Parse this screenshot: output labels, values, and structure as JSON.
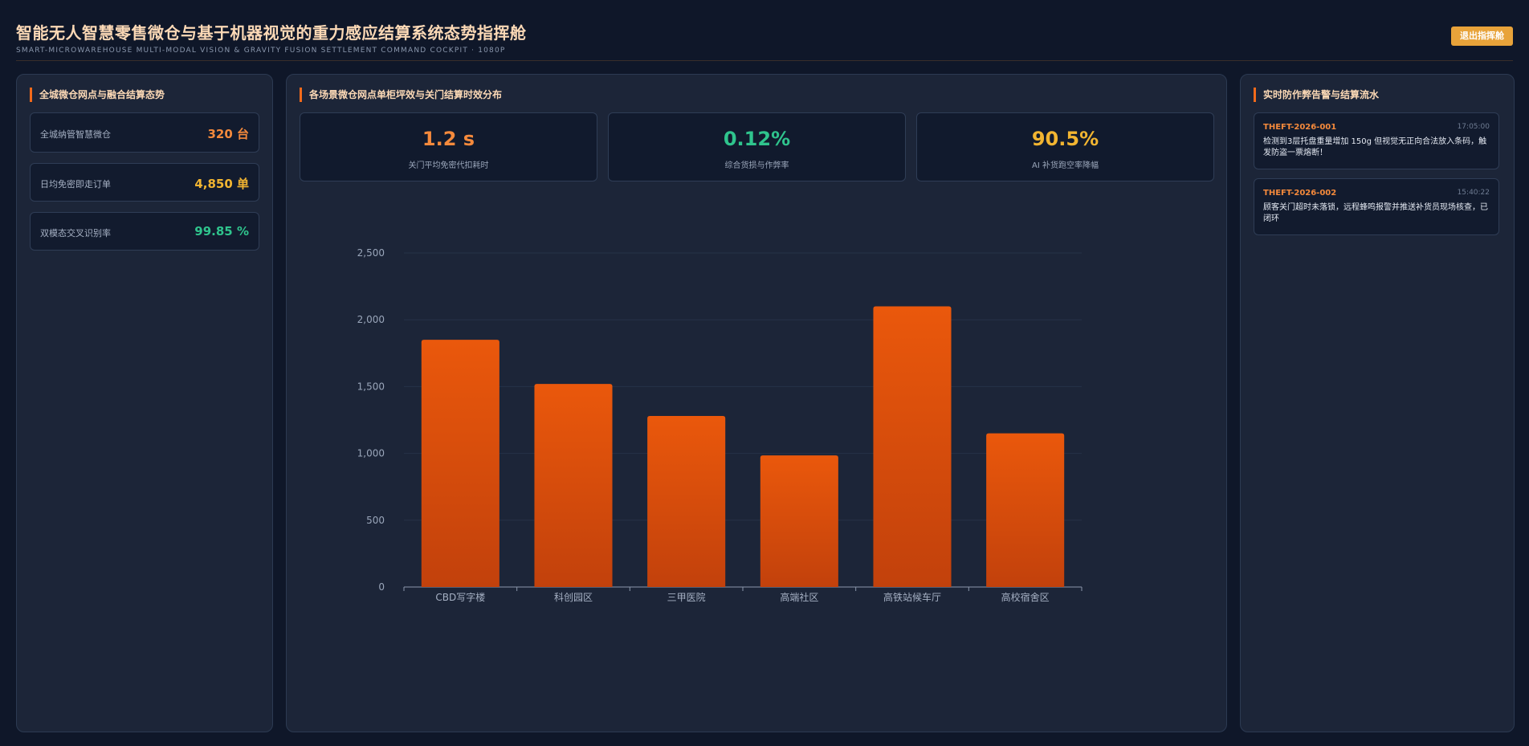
{
  "header": {
    "title": "智能无人智慧零售微仓与基于机器视觉的重力感应结算系统态势指挥舱",
    "subtitle": "SMART-MICROWAREHOUSE MULTI-MODAL VISION & GRAVITY FUSION SETTLEMENT COMMAND COCKPIT · 1080P",
    "exit_label": "退出指挥舱"
  },
  "left_panel": {
    "title": "全城微仓网点与融合结算态势",
    "stats": [
      {
        "label": "全城纳管智慧微仓",
        "value": "320 台",
        "color": "#f58a3c"
      },
      {
        "label": "日均免密即走订单",
        "value": "4,850 单",
        "color": "#f2b531"
      },
      {
        "label": "双模态交叉识别率",
        "value": "99.85 %",
        "color": "#2fc48d"
      }
    ]
  },
  "center_panel": {
    "title": "各场景微仓网点单柜坪效与关门结算时效分布",
    "kpis": [
      {
        "value": "1.2 s",
        "label": "关门平均免密代扣耗时",
        "color": "#f58a3c"
      },
      {
        "value": "0.12%",
        "label": "综合货损与作弊率",
        "color": "#2fc48d"
      },
      {
        "value": "90.5%",
        "label": "AI 补货跑空率降幅",
        "color": "#f2b531"
      }
    ]
  },
  "chart_data": {
    "type": "bar",
    "categories": [
      "CBD写字楼",
      "科创园区",
      "三甲医院",
      "高端社区",
      "高铁站候车厅",
      "高校宿舍区"
    ],
    "values": [
      1850,
      1520,
      1280,
      985,
      2100,
      1150
    ],
    "ylim": [
      0,
      2500
    ],
    "yticks": [
      0,
      500,
      1000,
      1500,
      2000,
      2500
    ],
    "ytick_labels": [
      "0",
      "500",
      "1,000",
      "1,500",
      "2,000",
      "2,500"
    ],
    "bar_color_top": "#ea580c",
    "bar_color_bottom": "#c2410c",
    "grid": true
  },
  "right_panel": {
    "title": "实时防作弊告警与结算流水",
    "alerts": [
      {
        "id": "THEFT-2026-001",
        "time": "17:05:00",
        "text": "检测到3层托盘重量增加 150g 但视觉无正向合法放入条码，触发防盗一票熔断！"
      },
      {
        "id": "THEFT-2026-002",
        "time": "15:40:22",
        "text": "顾客关门超时未落锁，远程蜂鸣报警并推送补货员现场核查，已闭环"
      }
    ]
  }
}
